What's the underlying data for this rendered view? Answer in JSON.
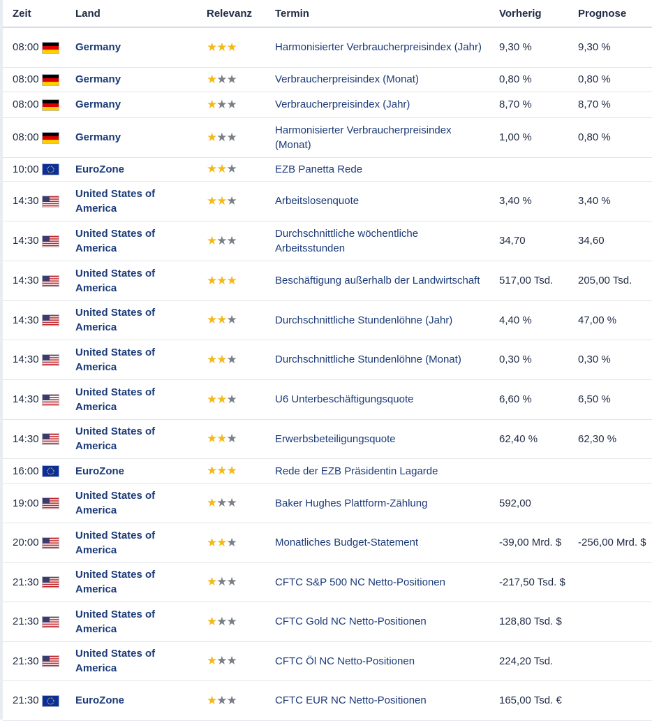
{
  "header": {
    "time": "Zeit",
    "country": "Land",
    "relevance": "Relevanz",
    "event": "Termin",
    "previous": "Vorherig",
    "forecast": "Prognose"
  },
  "colors": {
    "star_active": "#f4b918",
    "star_inactive": "#7a7f87",
    "link": "#1b3a78"
  },
  "rows": [
    {
      "time": "08:00",
      "flag": "germany-flag-icon",
      "country": "Germany",
      "stars": 3,
      "event": "Harmonisierter Verbraucherpreisindex (Jahr)",
      "previous": "9,30 %",
      "forecast": "9,30 %"
    },
    {
      "time": "08:00",
      "flag": "germany-flag-icon",
      "country": "Germany",
      "stars": 1,
      "event": "Verbraucherpreisindex (Monat)",
      "previous": "0,80 %",
      "forecast": "0,80 %"
    },
    {
      "time": "08:00",
      "flag": "germany-flag-icon",
      "country": "Germany",
      "stars": 1,
      "event": "Verbraucherpreisindex (Jahr)",
      "previous": "8,70 %",
      "forecast": "8,70 %"
    },
    {
      "time": "08:00",
      "flag": "germany-flag-icon",
      "country": "Germany",
      "stars": 1,
      "event": "Harmonisierter Verbraucherpreisindex (Monat)",
      "previous": "1,00 %",
      "forecast": "0,80 %"
    },
    {
      "time": "10:00",
      "flag": "eu-flag-icon",
      "country": "EuroZone",
      "stars": 2,
      "event": "EZB Panetta Rede",
      "previous": "",
      "forecast": ""
    },
    {
      "time": "14:30",
      "flag": "usa-flag-icon",
      "country": "United States of America",
      "stars": 2,
      "event": "Arbeitslosenquote",
      "previous": "3,40 %",
      "forecast": "3,40 %"
    },
    {
      "time": "14:30",
      "flag": "usa-flag-icon",
      "country": "United States of America",
      "stars": 1,
      "event": "Durchschnittliche wöchentliche Arbeitsstunden",
      "previous": "34,70",
      "forecast": "34,60"
    },
    {
      "time": "14:30",
      "flag": "usa-flag-icon",
      "country": "United States of America",
      "stars": 3,
      "event": "Beschäftigung außerhalb der Landwirtschaft",
      "previous": "517,00 Tsd.",
      "forecast": "205,00 Tsd."
    },
    {
      "time": "14:30",
      "flag": "usa-flag-icon",
      "country": "United States of America",
      "stars": 2,
      "event": "Durchschnittliche Stundenlöhne (Jahr)",
      "previous": "4,40 %",
      "forecast": "47,00 %"
    },
    {
      "time": "14:30",
      "flag": "usa-flag-icon",
      "country": "United States of America",
      "stars": 2,
      "event": "Durchschnittliche Stundenlöhne (Monat)",
      "previous": "0,30 %",
      "forecast": "0,30 %"
    },
    {
      "time": "14:30",
      "flag": "usa-flag-icon",
      "country": "United States of America",
      "stars": 2,
      "event": "U6 Unterbeschäftigungsquote",
      "previous": "6,60 %",
      "forecast": "6,50 %"
    },
    {
      "time": "14:30",
      "flag": "usa-flag-icon",
      "country": "United States of America",
      "stars": 2,
      "event": "Erwerbsbeteiligungsquote",
      "previous": "62,40 %",
      "forecast": "62,30 %"
    },
    {
      "time": "16:00",
      "flag": "eu-flag-icon",
      "country": "EuroZone",
      "stars": 3,
      "event": "Rede der EZB Präsidentin Lagarde",
      "previous": "",
      "forecast": ""
    },
    {
      "time": "19:00",
      "flag": "usa-flag-icon",
      "country": "United States of America",
      "stars": 1,
      "event": "Baker Hughes Plattform-Zählung",
      "previous": "592,00",
      "forecast": ""
    },
    {
      "time": "20:00",
      "flag": "usa-flag-icon",
      "country": "United States of America",
      "stars": 2,
      "event": "Monatliches Budget-Statement",
      "previous": "-39,00 Mrd. $",
      "forecast": "-256,00 Mrd. $"
    },
    {
      "time": "21:30",
      "flag": "usa-flag-icon",
      "country": "United States of America",
      "stars": 1,
      "event": "CFTC S&P 500 NC Netto-Positionen",
      "previous": "-217,50 Tsd. $",
      "forecast": ""
    },
    {
      "time": "21:30",
      "flag": "usa-flag-icon",
      "country": "United States of America",
      "stars": 1,
      "event": "CFTC Gold NC Netto-Positionen",
      "previous": "128,80 Tsd. $",
      "forecast": ""
    },
    {
      "time": "21:30",
      "flag": "usa-flag-icon",
      "country": "United States of America",
      "stars": 1,
      "event": "CFTC Öl NC Netto-Positionen",
      "previous": "224,20 Tsd.",
      "forecast": ""
    },
    {
      "time": "21:30",
      "flag": "eu-flag-icon",
      "country": "EuroZone",
      "stars": 1,
      "event": "CFTC EUR NC Netto-Positionen",
      "previous": "165,00 Tsd. €",
      "forecast": ""
    }
  ]
}
